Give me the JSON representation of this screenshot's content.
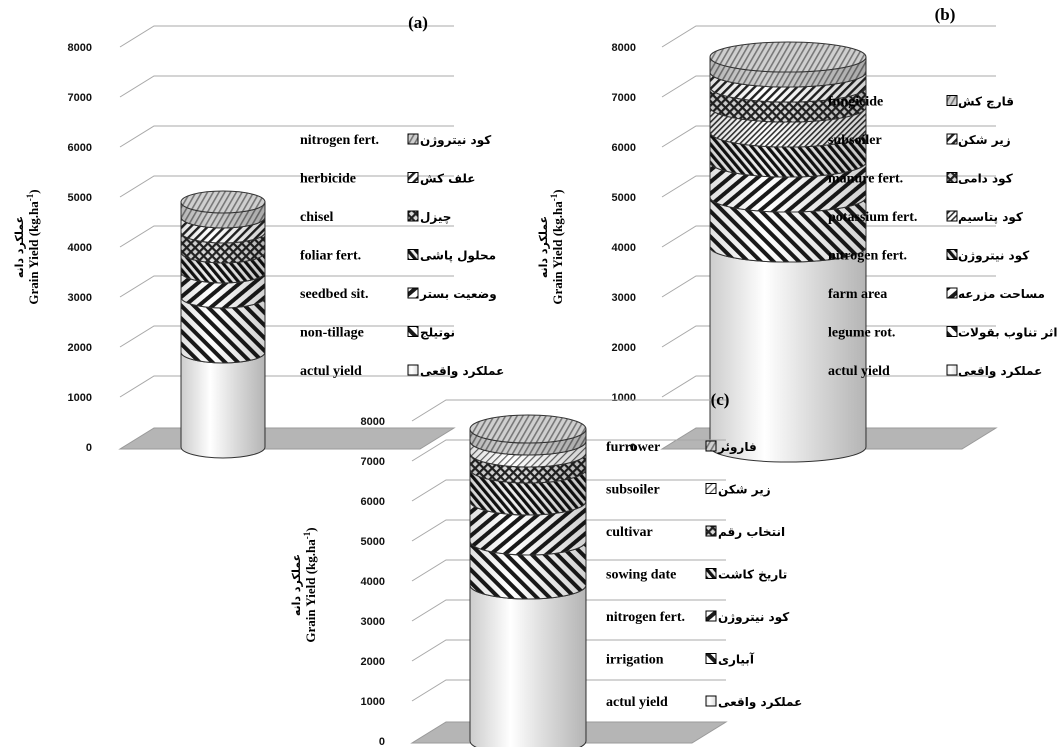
{
  "chart_data": [
    {
      "type": "bar",
      "subtype": "stacked-cylinder",
      "panel": "(a)",
      "ylabel": "Grain Yield (kg.ha⁻¹)",
      "ylabel_fa": "عملکرد دانه",
      "ylim": [
        0,
        8000
      ],
      "yticks": [
        0,
        1000,
        2000,
        3000,
        4000,
        5000,
        6000,
        7000,
        8000
      ],
      "segments": [
        {
          "name": "actul yield",
          "name_fa": "عملکرد واقعی",
          "value": 1900
        },
        {
          "name": "non-tillage",
          "name_fa": "نوتیلج",
          "value": 1100
        },
        {
          "name": "seedbed sit.",
          "name_fa": "وضعیت بستر",
          "value": 500
        },
        {
          "name": "foliar fert.",
          "name_fa": "محلول پاشی",
          "value": 400
        },
        {
          "name": "chisel",
          "name_fa": "چیزل",
          "value": 400
        },
        {
          "name": "herbicide",
          "name_fa": "علف کش",
          "value": 300
        },
        {
          "name": "nitrogen fert.",
          "name_fa": "کود نیتروژن",
          "value": 300
        }
      ]
    },
    {
      "type": "bar",
      "subtype": "stacked-cylinder",
      "panel": "(b)",
      "ylabel": "Grain Yield (kg.ha⁻¹)",
      "ylabel_fa": "عملکرد دانه",
      "ylim": [
        0,
        8000
      ],
      "yticks": [
        0,
        1000,
        2000,
        3000,
        4000,
        5000,
        6000,
        7000,
        8000
      ],
      "segments": [
        {
          "name": "actul yield",
          "name_fa": "عملکرد واقعی",
          "value": 4000
        },
        {
          "name": "legume rot.",
          "name_fa": "اثر تناوب بقولات",
          "value": 1000
        },
        {
          "name": "farm area",
          "name_fa": "مساحت مزرعه",
          "value": 700
        },
        {
          "name": "nitrogen fert.",
          "name_fa": "کود نیتروژن",
          "value": 600
        },
        {
          "name": "potassium fert.",
          "name_fa": "کود پتاسیم",
          "value": 500
        },
        {
          "name": "manure fert.",
          "name_fa": "کود دامی",
          "value": 400
        },
        {
          "name": "subsoiler",
          "name_fa": "زیر شکن",
          "value": 300
        },
        {
          "name": "fungicide",
          "name_fa": "قارچ کش",
          "value": 300
        }
      ]
    },
    {
      "type": "bar",
      "subtype": "stacked-cylinder",
      "panel": "(c)",
      "ylabel": "Grain Yield (kg.ha⁻¹)",
      "ylabel_fa": "عملکرد دانه",
      "ylim": [
        0,
        8000
      ],
      "yticks": [
        0,
        1000,
        2000,
        3000,
        4000,
        5000,
        6000,
        7000,
        8000
      ],
      "segments": [
        {
          "name": "actul yield",
          "name_fa": "عملکرد واقعی",
          "value": 3900
        },
        {
          "name": "irrigation",
          "name_fa": "آبیاری",
          "value": 1100
        },
        {
          "name": "nitrogen fert.",
          "name_fa": "کود نیتروژن",
          "value": 1000
        },
        {
          "name": "sowing date",
          "name_fa": "تاریخ کاشت",
          "value": 800
        },
        {
          "name": "cultivar",
          "name_fa": "انتخاب رقم",
          "value": 400
        },
        {
          "name": "subsoiler",
          "name_fa": "زیر شکن",
          "value": 300
        },
        {
          "name": "furrower",
          "name_fa": "فاروئر",
          "value": 300
        }
      ]
    }
  ]
}
